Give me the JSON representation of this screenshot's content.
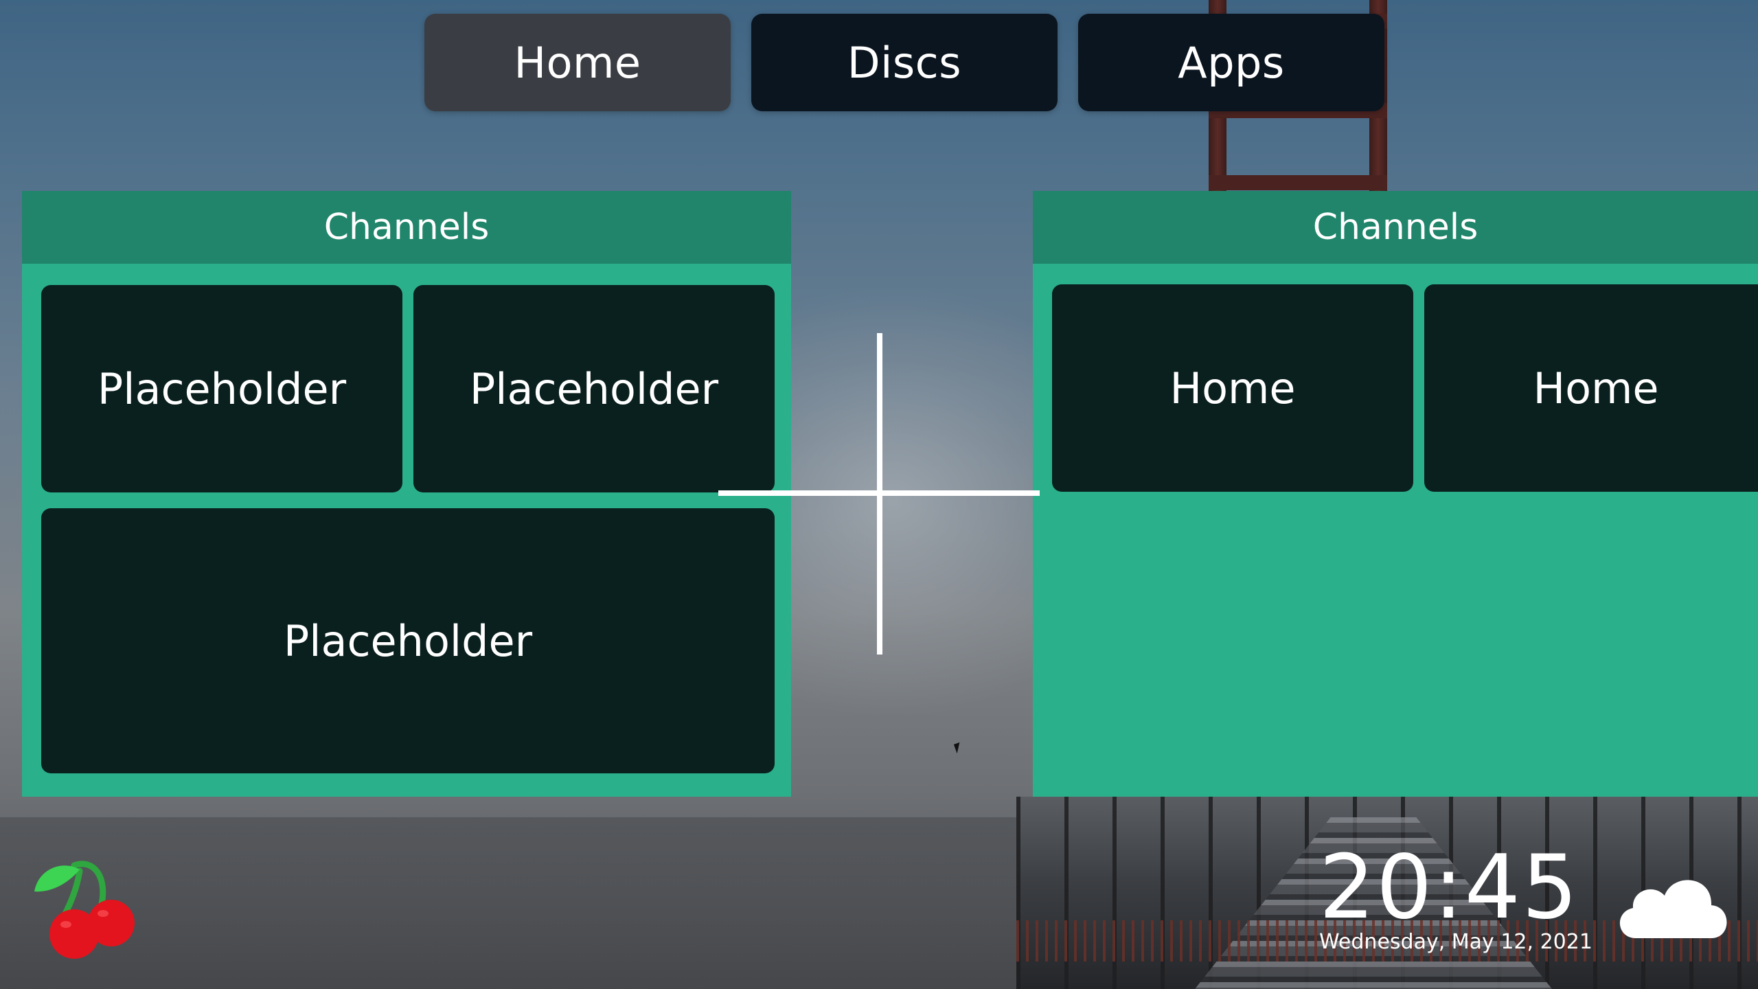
{
  "top_tabs": [
    {
      "label": "Home",
      "active": true
    },
    {
      "label": "Discs",
      "active": false
    },
    {
      "label": "Apps",
      "active": false
    }
  ],
  "left_panel": {
    "title": "Channels",
    "tiles": [
      "Placeholder",
      "Placeholder",
      "Placeholder"
    ]
  },
  "right_panel": {
    "title": "Channels",
    "tiles": [
      "Home",
      "Home"
    ]
  },
  "status": {
    "time": "20:45",
    "date": "Wednesday, May 12, 2021",
    "weather_icon": "cloud-icon",
    "logo_icon": "cherry-icon"
  },
  "colors": {
    "panel_body": "#2bb08c",
    "panel_header": "#20856b",
    "tile": "#0a201e",
    "tab": "#0b1520",
    "tab_active": "#3a3e44",
    "cherry_red": "#e3141e",
    "cherry_leaf": "#3cd452"
  }
}
